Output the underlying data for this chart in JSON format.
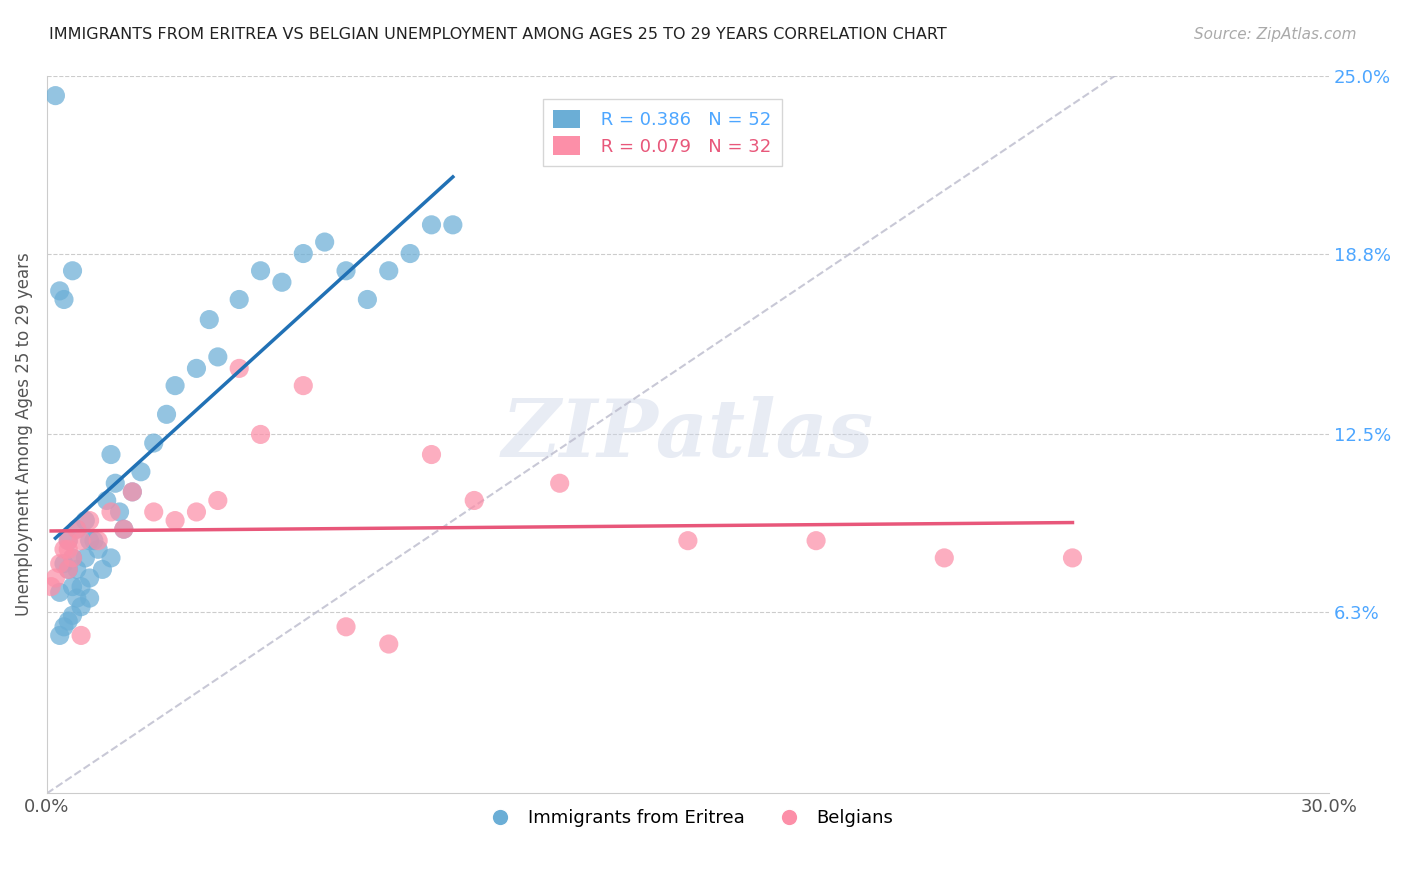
{
  "title": "IMMIGRANTS FROM ERITREA VS BELGIAN UNEMPLOYMENT AMONG AGES 25 TO 29 YEARS CORRELATION CHART",
  "source": "Source: ZipAtlas.com",
  "ylabel": "Unemployment Among Ages 25 to 29 years",
  "x_min": 0.0,
  "x_max": 0.3,
  "y_min": 0.0,
  "y_max": 0.25,
  "x_tick_positions": [
    0.0,
    0.05,
    0.1,
    0.15,
    0.2,
    0.25,
    0.3
  ],
  "x_tick_labels": [
    "0.0%",
    "",
    "",
    "",
    "",
    "",
    "30.0%"
  ],
  "y_tick_labels_right": [
    "6.3%",
    "12.5%",
    "18.8%",
    "25.0%"
  ],
  "y_tick_values_right": [
    0.063,
    0.125,
    0.188,
    0.25
  ],
  "legend_blue_label": "Immigrants from Eritrea",
  "legend_pink_label": "Belgians",
  "blue_R": 0.386,
  "blue_N": 52,
  "pink_R": 0.079,
  "pink_N": 32,
  "blue_color": "#6baed6",
  "pink_color": "#fc8fa8",
  "blue_line_color": "#2171b5",
  "pink_line_color": "#e8577a",
  "watermark": "ZIPatlas",
  "blue_scatter_x": [
    0.002,
    0.003,
    0.003,
    0.004,
    0.004,
    0.005,
    0.005,
    0.005,
    0.006,
    0.006,
    0.006,
    0.007,
    0.007,
    0.007,
    0.008,
    0.008,
    0.009,
    0.009,
    0.01,
    0.01,
    0.01,
    0.011,
    0.012,
    0.013,
    0.014,
    0.015,
    0.015,
    0.016,
    0.017,
    0.018,
    0.02,
    0.022,
    0.025,
    0.028,
    0.03,
    0.035,
    0.038,
    0.04,
    0.045,
    0.05,
    0.055,
    0.06,
    0.065,
    0.07,
    0.075,
    0.08,
    0.085,
    0.09,
    0.095,
    0.003,
    0.004,
    0.006
  ],
  "blue_scatter_y": [
    0.243,
    0.055,
    0.07,
    0.058,
    0.08,
    0.06,
    0.078,
    0.088,
    0.062,
    0.072,
    0.082,
    0.068,
    0.078,
    0.092,
    0.072,
    0.065,
    0.082,
    0.095,
    0.075,
    0.088,
    0.068,
    0.088,
    0.085,
    0.078,
    0.102,
    0.082,
    0.118,
    0.108,
    0.098,
    0.092,
    0.105,
    0.112,
    0.122,
    0.132,
    0.142,
    0.148,
    0.165,
    0.152,
    0.172,
    0.182,
    0.178,
    0.188,
    0.192,
    0.182,
    0.172,
    0.182,
    0.188,
    0.198,
    0.198,
    0.175,
    0.172,
    0.182
  ],
  "pink_scatter_x": [
    0.001,
    0.002,
    0.003,
    0.004,
    0.005,
    0.005,
    0.006,
    0.007,
    0.008,
    0.01,
    0.012,
    0.015,
    0.018,
    0.02,
    0.025,
    0.03,
    0.035,
    0.04,
    0.045,
    0.05,
    0.06,
    0.07,
    0.08,
    0.09,
    0.1,
    0.12,
    0.15,
    0.18,
    0.21,
    0.24,
    0.005,
    0.008
  ],
  "pink_scatter_y": [
    0.072,
    0.075,
    0.08,
    0.085,
    0.078,
    0.088,
    0.082,
    0.092,
    0.088,
    0.095,
    0.088,
    0.098,
    0.092,
    0.105,
    0.098,
    0.095,
    0.098,
    0.102,
    0.148,
    0.125,
    0.142,
    0.058,
    0.052,
    0.118,
    0.102,
    0.108,
    0.088,
    0.088,
    0.082,
    0.082,
    0.085,
    0.055
  ]
}
